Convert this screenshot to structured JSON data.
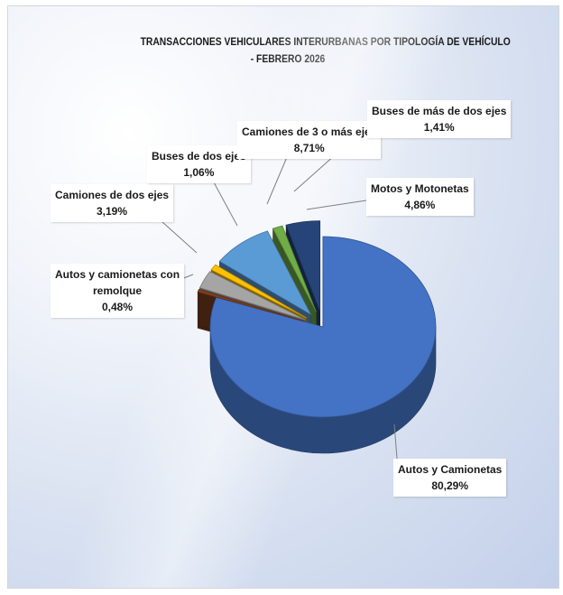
{
  "chart_data": {
    "type": "pie",
    "title_line1": "TRANSACCIONES VEHICULARES INTERURBANAS POR TIPOLOGÍA DE VEHÍCULO",
    "title_line2": "- FEBRERO 2026",
    "slices": [
      {
        "name": "Autos y Camionetas",
        "value": 80.29,
        "label": "80,29%",
        "color": "#4472c4"
      },
      {
        "name": "Autos y camionetas con remolque",
        "value": 0.48,
        "label": "0,48%",
        "color": "#7f3f1f"
      },
      {
        "name": "Camiones de dos ejes",
        "value": 3.19,
        "label": "3,19%",
        "color": "#a5a5a5"
      },
      {
        "name": "Buses de dos ejes",
        "value": 1.06,
        "label": "1,06%",
        "color": "#ffc000"
      },
      {
        "name": "Camiones de 3 o más ejes",
        "value": 8.71,
        "label": "8,71%",
        "color": "#5b9bd5"
      },
      {
        "name": "Buses de más de dos ejes",
        "value": 1.41,
        "label": "1,41%",
        "color": "#70ad47"
      },
      {
        "name": "Motos y Motonetas",
        "value": 4.86,
        "label": "4,86%",
        "color": "#264478"
      }
    ]
  }
}
